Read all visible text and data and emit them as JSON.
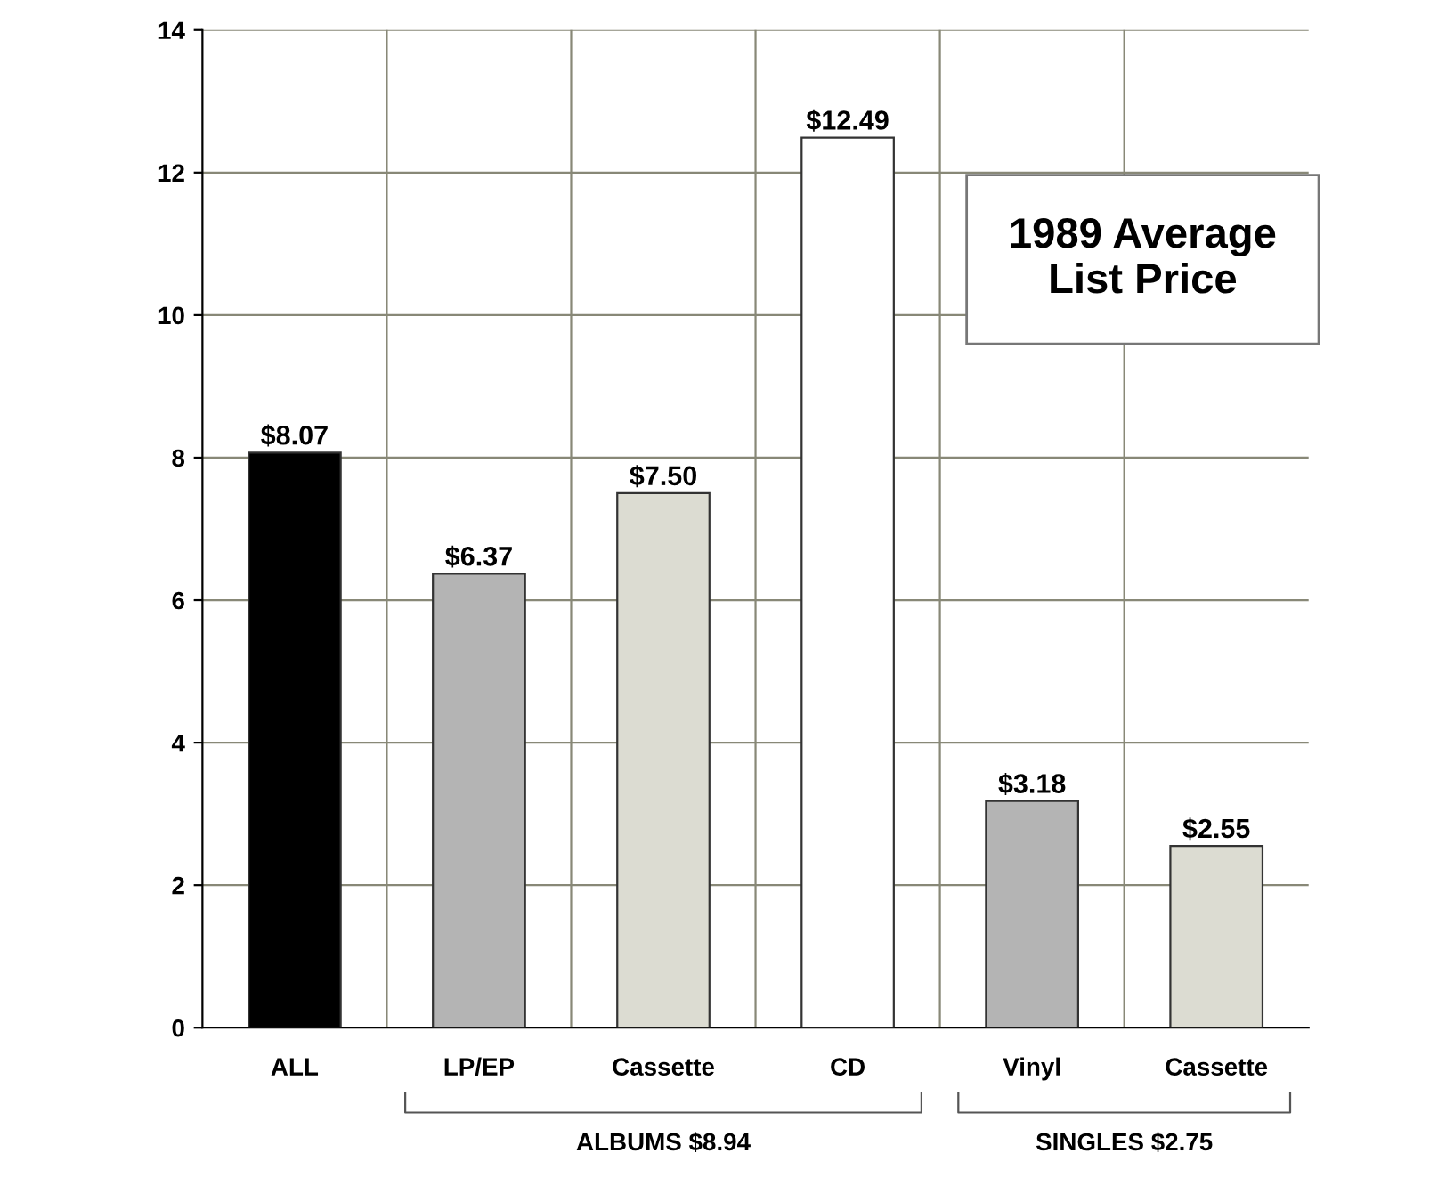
{
  "chart_data": {
    "type": "bar",
    "title": "1989 Average\nList Price",
    "categories": [
      "ALL",
      "LP/EP",
      "Cassette",
      "CD",
      "Vinyl",
      "Cassette"
    ],
    "values": [
      8.07,
      6.37,
      7.5,
      12.49,
      3.18,
      2.55
    ],
    "colors": [
      "#000000",
      "#b4b4b4",
      "#dcdcd2",
      "#ffffff",
      "#b4b4b4",
      "#dcdcd2"
    ],
    "value_labels": [
      "$8.07",
      "$6.37",
      "$7.50",
      "$12.49",
      "$3.18",
      "$2.55"
    ],
    "annotations": [
      "ALBUMS $8.94",
      "SINGLES $2.75"
    ],
    "ylim": [
      0,
      14
    ],
    "yticks": [
      0,
      2,
      4,
      6,
      8,
      10,
      12,
      14
    ],
    "grid": true
  }
}
